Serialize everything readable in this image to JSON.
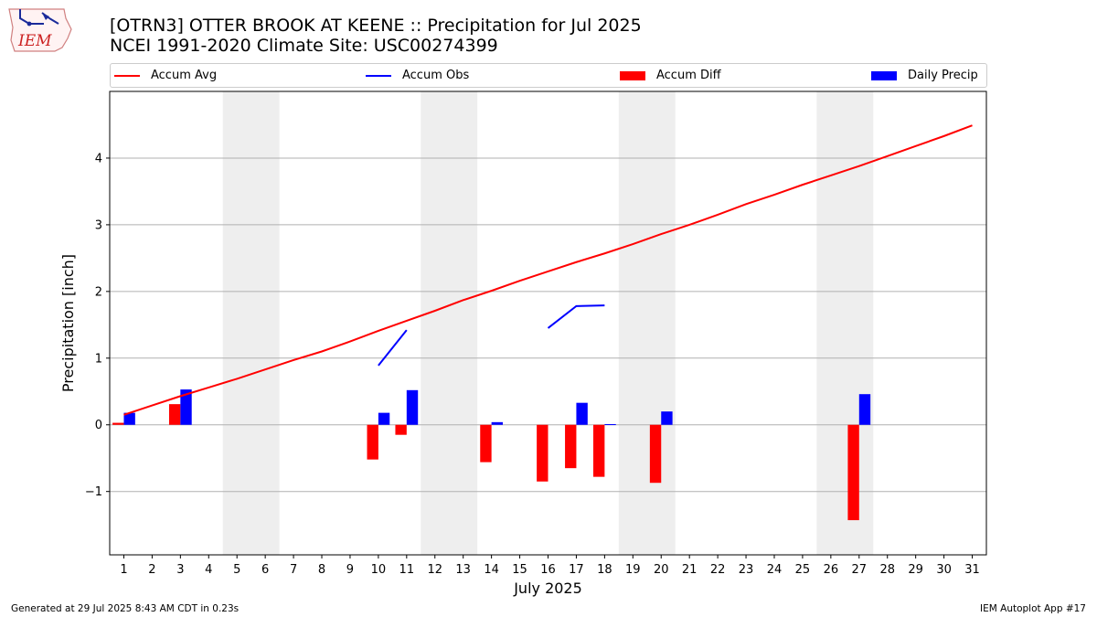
{
  "header": {
    "title_line1": "[OTRN3] OTTER BROOK AT KEENE :: Precipitation for Jul 2025",
    "title_line2": "NCEI 1991-2020 Climate Site: USC00274399",
    "logo_text": "IEM"
  },
  "legend": {
    "items": [
      {
        "label": "Accum Avg",
        "kind": "line",
        "color": "#ff0000"
      },
      {
        "label": "Accum Obs",
        "kind": "line",
        "color": "#0000ff"
      },
      {
        "label": "Accum Diff",
        "kind": "box",
        "color": "#ff0000"
      },
      {
        "label": "Daily Precip",
        "kind": "box",
        "color": "#0000ff"
      }
    ]
  },
  "chart_data": {
    "type": "bar",
    "xlabel": "July 2025",
    "ylabel": "Precipitation [inch]",
    "xlim": [
      0.5,
      31.5
    ],
    "ylim": [
      -1.95,
      5.0
    ],
    "yticks": [
      -1,
      0,
      1,
      2,
      3,
      4
    ],
    "xticks": [
      1,
      2,
      3,
      4,
      5,
      6,
      7,
      8,
      9,
      10,
      11,
      12,
      13,
      14,
      15,
      16,
      17,
      18,
      19,
      20,
      21,
      22,
      23,
      24,
      25,
      26,
      27,
      28,
      29,
      30,
      31
    ],
    "grid": "y",
    "weekend_shading": [
      [
        4.5,
        6.5
      ],
      [
        11.5,
        13.5
      ],
      [
        18.5,
        20.5
      ],
      [
        25.5,
        27.5
      ]
    ],
    "series": [
      {
        "name": "Accum Avg",
        "type": "line",
        "color": "#ff0000",
        "x": [
          1,
          2,
          3,
          4,
          5,
          6,
          7,
          8,
          9,
          10,
          11,
          12,
          13,
          14,
          15,
          16,
          17,
          18,
          19,
          20,
          21,
          22,
          23,
          24,
          25,
          26,
          27,
          28,
          29,
          30,
          31
        ],
        "y": [
          0.15,
          0.29,
          0.43,
          0.56,
          0.69,
          0.83,
          0.97,
          1.1,
          1.25,
          1.41,
          1.56,
          1.71,
          1.87,
          2.01,
          2.16,
          2.3,
          2.44,
          2.57,
          2.71,
          2.86,
          3.0,
          3.15,
          3.31,
          3.45,
          3.6,
          3.74,
          3.88,
          4.03,
          4.18,
          4.33,
          4.49
        ]
      },
      {
        "name": "Accum Obs",
        "type": "line",
        "color": "#0000ff",
        "segments": [
          {
            "x": [
              10,
              11
            ],
            "y": [
              0.89,
              1.42
            ]
          },
          {
            "x": [
              16,
              17,
              18
            ],
            "y": [
              1.45,
              1.78,
              1.79
            ]
          }
        ]
      },
      {
        "name": "Accum Diff",
        "type": "bar",
        "color": "#ff0000",
        "offset": -0.2,
        "x": [
          1,
          3,
          10,
          11,
          14,
          16,
          17,
          18,
          20,
          27
        ],
        "y": [
          0.03,
          0.31,
          -0.52,
          -0.15,
          -0.56,
          -0.85,
          -0.65,
          -0.78,
          -0.87,
          -1.43
        ]
      },
      {
        "name": "Daily Precip",
        "type": "bar",
        "color": "#0000ff",
        "offset": 0.2,
        "x": [
          1,
          3,
          10,
          11,
          14,
          17,
          18,
          20,
          27
        ],
        "y": [
          0.18,
          0.53,
          0.18,
          0.52,
          0.04,
          0.33,
          0.01,
          0.2,
          0.46
        ]
      }
    ]
  },
  "footer": {
    "left": "Generated at 29 Jul 2025 8:43 AM CDT in 0.23s",
    "right": "IEM Autoplot App #17"
  }
}
